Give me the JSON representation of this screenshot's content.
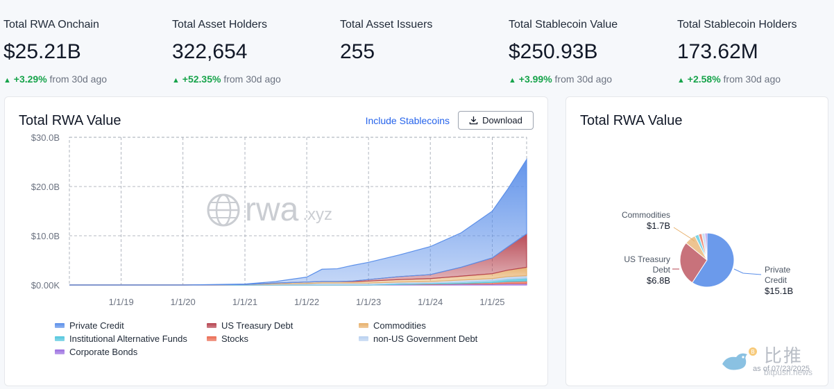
{
  "stats": [
    {
      "label": "Total RWA Onchain",
      "value": "$25.21B",
      "change": "+3.29%",
      "suffix": "from 30d ago"
    },
    {
      "label": "Total Asset Holders",
      "value": "322,654",
      "change": "+52.35%",
      "suffix": "from 30d ago"
    },
    {
      "label": "Total Asset Issuers",
      "value": "255",
      "change": "",
      "suffix": ""
    },
    {
      "label": "Total Stablecoin Value",
      "value": "$250.93B",
      "change": "+3.99%",
      "suffix": "from 30d ago"
    },
    {
      "label": "Total Stablecoin Holders",
      "value": "173.62M",
      "change": "+2.58%",
      "suffix": "from 30d ago"
    }
  ],
  "main_card": {
    "title": "Total RWA Value",
    "toggle_label": "Include Stablecoins",
    "download_label": "Download",
    "watermark": "rwa",
    "watermark_suffix": ".xyz"
  },
  "pie_card": {
    "title": "Total RWA Value",
    "labels": [
      {
        "name": "Commodities",
        "value": "$1.7B"
      },
      {
        "name": "US Treasury Debt",
        "value": "$6.8B"
      },
      {
        "name": "Private Credit",
        "value": "$15.1B"
      }
    ],
    "corner_watermark": "比推",
    "corner_domain": "bitpush.news",
    "as_of": "as of 07/23/2025"
  },
  "colors": {
    "positive": "#16a34a",
    "link": "#2563eb",
    "private_credit": "#5b8fe9",
    "us_treasury": "#b6434f",
    "commodities": "#e7b06c",
    "institutional_funds": "#52c6dd",
    "stocks": "#ea6b52",
    "non_us_gov": "#b9d1f0",
    "corporate_bonds": "#9b6fe0"
  },
  "chart_data": [
    {
      "type": "area",
      "title": "Total RWA Value",
      "x_ticks": [
        "1/1/19",
        "1/1/20",
        "1/1/21",
        "1/1/22",
        "1/1/23",
        "1/1/24",
        "1/1/25"
      ],
      "y_ticks": [
        "$0.00K",
        "$10.0B",
        "$20.0B",
        "$30.0B"
      ],
      "ylim": [
        0,
        30
      ],
      "y_unit": "B",
      "stacked": true,
      "grid": true,
      "legend_position": "bottom",
      "x": [
        "2018-03-01",
        "2019-01-01",
        "2020-01-01",
        "2021-01-01",
        "2021-07-01",
        "2022-01-01",
        "2022-04-01",
        "2022-07-01",
        "2022-10-01",
        "2023-01-01",
        "2023-07-01",
        "2024-01-01",
        "2024-07-01",
        "2025-01-01",
        "2025-04-01",
        "2025-07-23"
      ],
      "series": [
        {
          "name": "Corporate Bonds",
          "values": [
            0,
            0,
            0,
            0,
            0,
            0,
            0,
            0,
            0,
            0,
            0.1,
            0.1,
            0.2,
            0.2,
            0.3,
            0.3
          ]
        },
        {
          "name": "Stocks",
          "values": [
            0,
            0,
            0,
            0,
            0,
            0,
            0,
            0,
            0,
            0,
            0,
            0.1,
            0.1,
            0.3,
            0.4,
            0.5
          ]
        },
        {
          "name": "Institutional Alternative Funds",
          "values": [
            0,
            0,
            0,
            0.1,
            0.1,
            0.1,
            0.1,
            0.1,
            0.1,
            0.1,
            0.2,
            0.2,
            0.3,
            0.4,
            0.5,
            0.6
          ]
        },
        {
          "name": "non-US Government Debt",
          "values": [
            0,
            0,
            0,
            0,
            0.1,
            0.2,
            0.3,
            0.3,
            0.3,
            0.3,
            0.3,
            0.3,
            0.4,
            0.4,
            0.5,
            0.5
          ]
        },
        {
          "name": "Commodities",
          "values": [
            0,
            0,
            0,
            0,
            0.2,
            0.3,
            0.3,
            0.3,
            0.3,
            0.4,
            0.5,
            0.6,
            0.8,
            1.0,
            1.3,
            1.7
          ]
        },
        {
          "name": "US Treasury Debt",
          "values": [
            0,
            0,
            0,
            0,
            0,
            0,
            0,
            0,
            0.1,
            0.3,
            0.6,
            0.8,
            1.8,
            3.2,
            4.7,
            6.8
          ]
        },
        {
          "name": "Private Credit",
          "values": [
            0,
            0,
            0,
            0.1,
            0.3,
            1.0,
            2.5,
            2.6,
            3.2,
            3.5,
            4.4,
            5.7,
            7.0,
            9.5,
            11.7,
            15.1
          ]
        }
      ]
    },
    {
      "type": "pie",
      "title": "Total RWA Value",
      "labels": [
        "Private Credit",
        "US Treasury Debt",
        "Commodities",
        "Institutional Alternative Funds",
        "Stocks",
        "non-US Government Debt",
        "Corporate Bonds"
      ],
      "values": [
        15.1,
        6.8,
        1.7,
        0.6,
        0.5,
        0.5,
        0.3
      ]
    }
  ]
}
